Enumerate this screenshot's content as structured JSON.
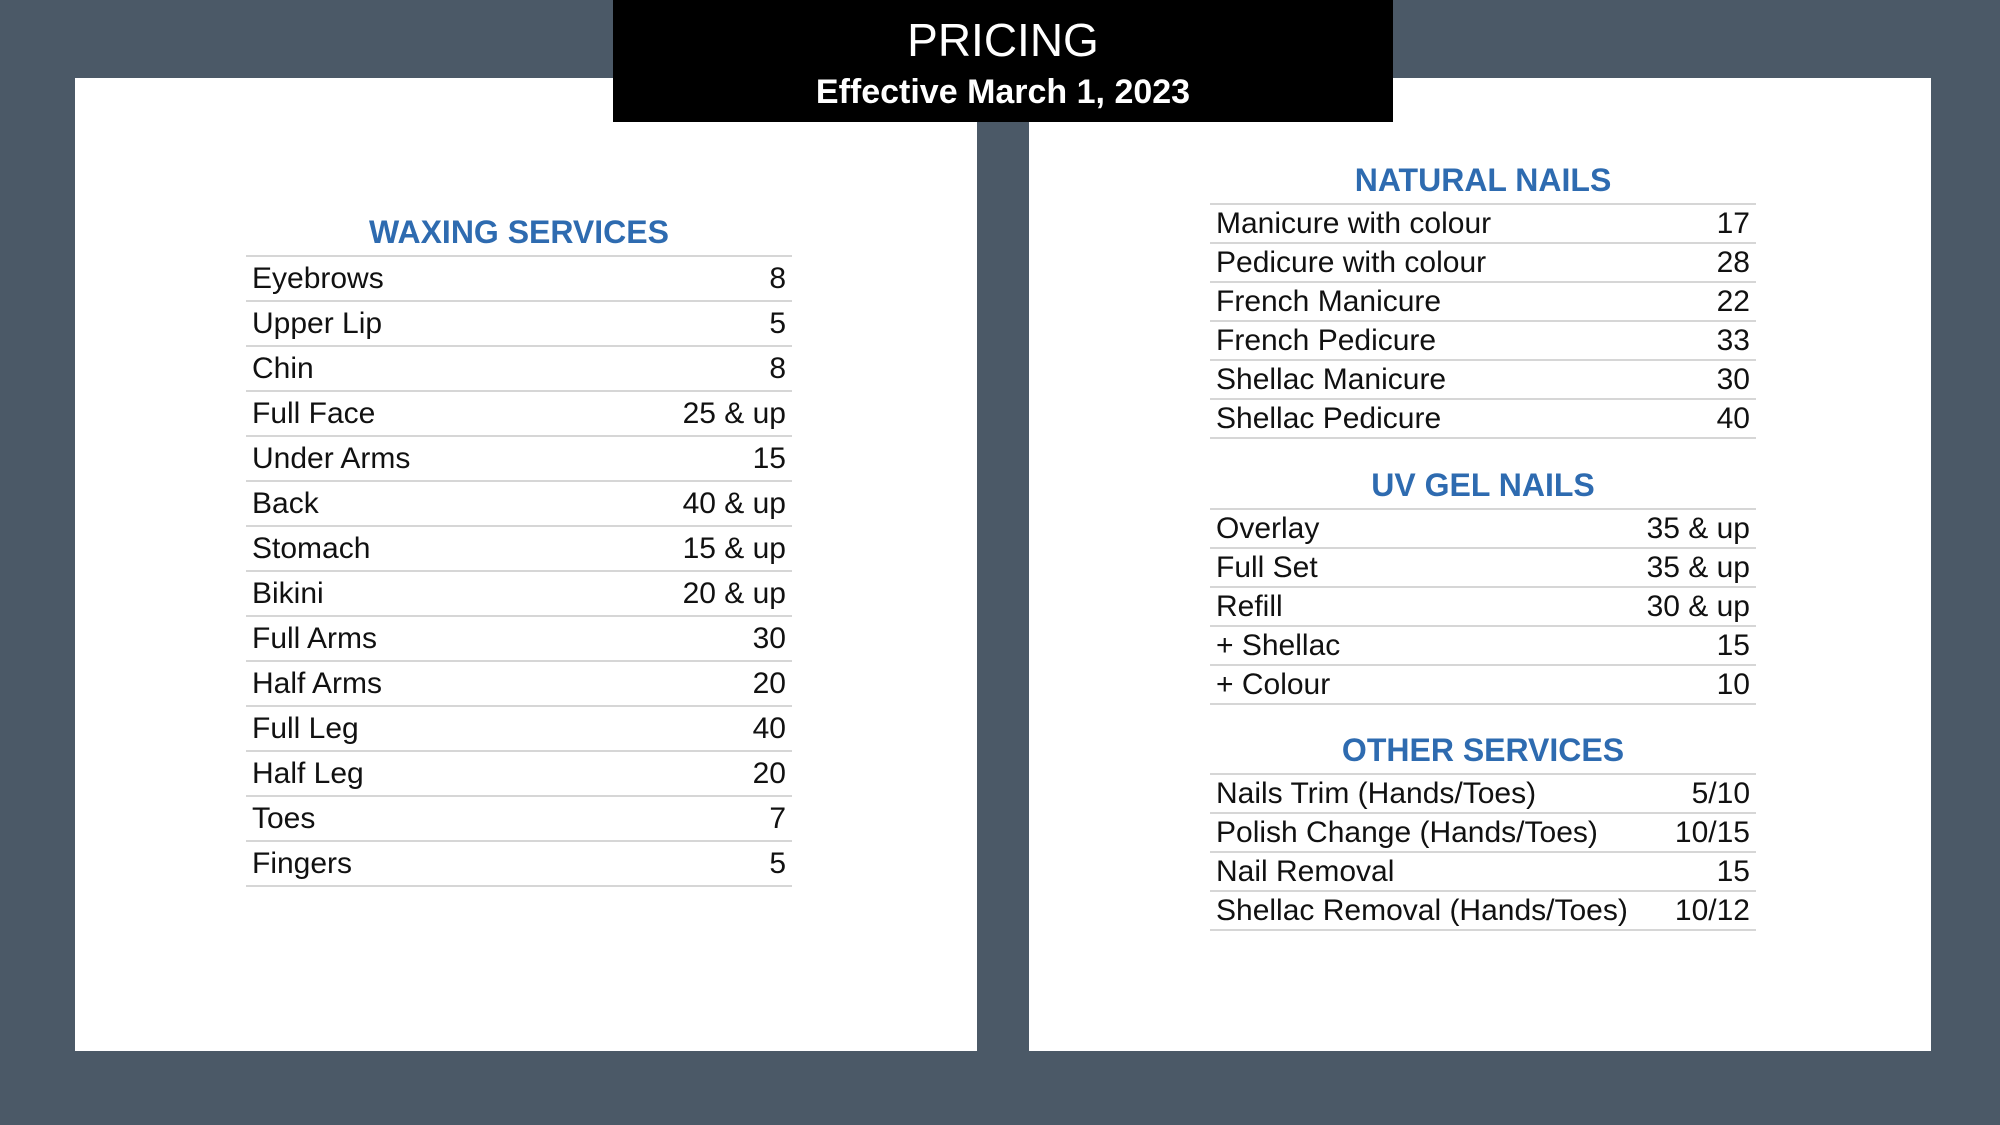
{
  "header": {
    "title": "PRICING",
    "subtitle": "Effective March 1, 2023"
  },
  "sections": [
    {
      "title": "WAXING SERVICES",
      "items": [
        {
          "name": "Eyebrows",
          "price": "8"
        },
        {
          "name": "Upper Lip",
          "price": "5"
        },
        {
          "name": "Chin",
          "price": "8"
        },
        {
          "name": "Full Face",
          "price": "25 & up"
        },
        {
          "name": "Under Arms",
          "price": "15"
        },
        {
          "name": "Back",
          "price": "40 & up"
        },
        {
          "name": "Stomach",
          "price": "15 & up"
        },
        {
          "name": "Bikini",
          "price": "20 & up"
        },
        {
          "name": "Full Arms",
          "price": "30"
        },
        {
          "name": "Half Arms",
          "price": "20"
        },
        {
          "name": "Full Leg",
          "price": "40"
        },
        {
          "name": "Half Leg",
          "price": "20"
        },
        {
          "name": "Toes",
          "price": "7"
        },
        {
          "name": "Fingers",
          "price": "5"
        }
      ]
    },
    {
      "title": "NATURAL NAILS",
      "items": [
        {
          "name": "Manicure with colour",
          "price": "17"
        },
        {
          "name": "Pedicure with colour",
          "price": "28"
        },
        {
          "name": "French Manicure",
          "price": "22"
        },
        {
          "name": "French Pedicure",
          "price": "33"
        },
        {
          "name": "Shellac Manicure",
          "price": "30"
        },
        {
          "name": "Shellac Pedicure",
          "price": "40"
        }
      ]
    },
    {
      "title": "UV GEL NAILS",
      "items": [
        {
          "name": "Overlay",
          "price": "35 & up"
        },
        {
          "name": "Full Set",
          "price": "35 & up"
        },
        {
          "name": "Refill",
          "price": "30 & up"
        },
        {
          "name": "+ Shellac",
          "price": "15"
        },
        {
          "name": "+ Colour",
          "price": "10"
        }
      ]
    },
    {
      "title": "OTHER SERVICES",
      "items": [
        {
          "name": "Nails Trim (Hands/Toes)",
          "price": "5/10"
        },
        {
          "name": "Polish Change (Hands/Toes)",
          "price": "10/15"
        },
        {
          "name": "Nail Removal",
          "price": "15"
        },
        {
          "name": "Shellac Removal (Hands/Toes)",
          "price": "10/12"
        }
      ]
    }
  ]
}
